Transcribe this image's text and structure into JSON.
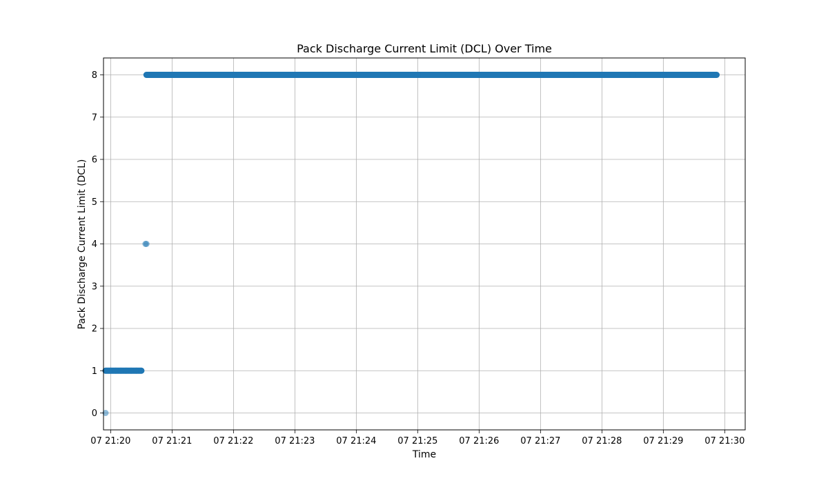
{
  "chart_data": {
    "type": "scatter",
    "title": "Pack Discharge Current Limit (DCL) Over Time",
    "xlabel": "Time",
    "ylabel": "Pack Discharge Current Limit (DCL)",
    "x_ticks": [
      "07 21:20",
      "07 21:21",
      "07 21:22",
      "07 21:23",
      "07 21:24",
      "07 21:25",
      "07 21:26",
      "07 21:27",
      "07 21:28",
      "07 21:29",
      "07 21:30"
    ],
    "y_ticks": [
      "0",
      "1",
      "2",
      "3",
      "4",
      "5",
      "6",
      "7",
      "8"
    ],
    "ylim": [
      -0.4,
      8.4
    ],
    "xlim": [
      "21:19:53",
      "21:30:20"
    ],
    "grid": true,
    "color": "#1f77b4",
    "points": [
      {
        "time": "21:19:55",
        "value": 0
      },
      {
        "time": "21:19:55",
        "value": 1
      },
      {
        "time": "21:20:00",
        "value": 1
      },
      {
        "time": "21:20:05",
        "value": 1
      },
      {
        "time": "21:20:10",
        "value": 1
      },
      {
        "time": "21:20:15",
        "value": 1
      },
      {
        "time": "21:20:20",
        "value": 1
      },
      {
        "time": "21:20:25",
        "value": 1
      },
      {
        "time": "21:20:30",
        "value": 1
      },
      {
        "time": "21:20:34",
        "value": 4
      },
      {
        "time": "21:20:35",
        "value": 4
      },
      {
        "time": "21:20:35",
        "value": 8
      },
      {
        "time": "21:21:00",
        "value": 8
      },
      {
        "time": "21:21:30",
        "value": 8
      },
      {
        "time": "21:22:00",
        "value": 8
      },
      {
        "time": "21:22:30",
        "value": 8
      },
      {
        "time": "21:23:00",
        "value": 8
      },
      {
        "time": "21:23:30",
        "value": 8
      },
      {
        "time": "21:24:00",
        "value": 8
      },
      {
        "time": "21:24:30",
        "value": 8
      },
      {
        "time": "21:25:00",
        "value": 8
      },
      {
        "time": "21:25:30",
        "value": 8
      },
      {
        "time": "21:26:00",
        "value": 8
      },
      {
        "time": "21:26:30",
        "value": 8
      },
      {
        "time": "21:27:00",
        "value": 8
      },
      {
        "time": "21:27:30",
        "value": 8
      },
      {
        "time": "21:28:00",
        "value": 8
      },
      {
        "time": "21:28:30",
        "value": 8
      },
      {
        "time": "21:29:00",
        "value": 8
      },
      {
        "time": "21:29:30",
        "value": 8
      },
      {
        "time": "21:29:52",
        "value": 8
      }
    ]
  }
}
